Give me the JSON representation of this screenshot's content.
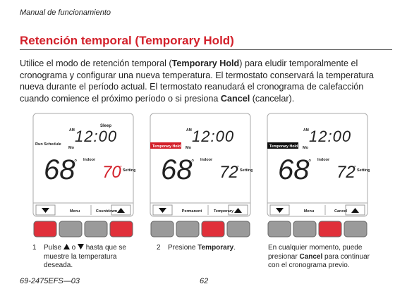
{
  "header": {
    "title": "Manual de funcionamiento"
  },
  "section": {
    "title": "Retención temporal (Temporary Hold)",
    "body": [
      "Utilice el modo de retención temporal (",
      "Temporary Hold",
      ") para eludir temporalmente el cronograma y configurar una nueva temperatura. El termostato conservará la temperatura nueva durante el período actual. El termostato reanudará el cronograma de calefacción cuando comience el próximo período o si presiona ",
      "Cancel",
      " (cancelar)."
    ]
  },
  "panels": [
    {
      "ampm": "AM",
      "clock": "12:00",
      "period": "Sleep",
      "mode": "Run Schedule",
      "day": "Mo",
      "indoor": "68",
      "indoor_deg": "°",
      "indoor_label": "Indoor",
      "setting": "70",
      "setting_deg": "°",
      "setting_label": "Setting",
      "left_button": "Menu",
      "right_button": "Countdown"
    },
    {
      "ampm": "AM",
      "clock": "12:00",
      "badge": "Temporary Hold",
      "day": "Mo",
      "indoor": "68",
      "indoor_deg": "°",
      "indoor_label": "Indoor",
      "setting": "72",
      "setting_deg": "°",
      "setting_label": "Setting",
      "left_button": "Permanent",
      "right_button": "Temporary"
    },
    {
      "ampm": "AM",
      "clock": "12:00",
      "badge": "Temporary Hold",
      "day": "Mo",
      "indoor": "68",
      "indoor_deg": "°",
      "indoor_label": "Indoor",
      "setting": "72",
      "setting_deg": "°",
      "setting_label": "Setting",
      "left_button": "Menu",
      "right_button": "Cancel"
    }
  ],
  "captions": [
    {
      "number": "1",
      "parts": [
        "Pulse",
        "o",
        "hasta que se muestre la temperatura deseada."
      ]
    },
    {
      "number": "2",
      "parts": [
        "Presione ",
        "Temporary",
        "."
      ]
    },
    {
      "parts": [
        "En cualquier momento, puede presionar ",
        "Cancel",
        " para continuar con el cronograma previo."
      ]
    }
  ],
  "footer": {
    "doc_number": "69-2475EFS—03",
    "page": "62"
  }
}
